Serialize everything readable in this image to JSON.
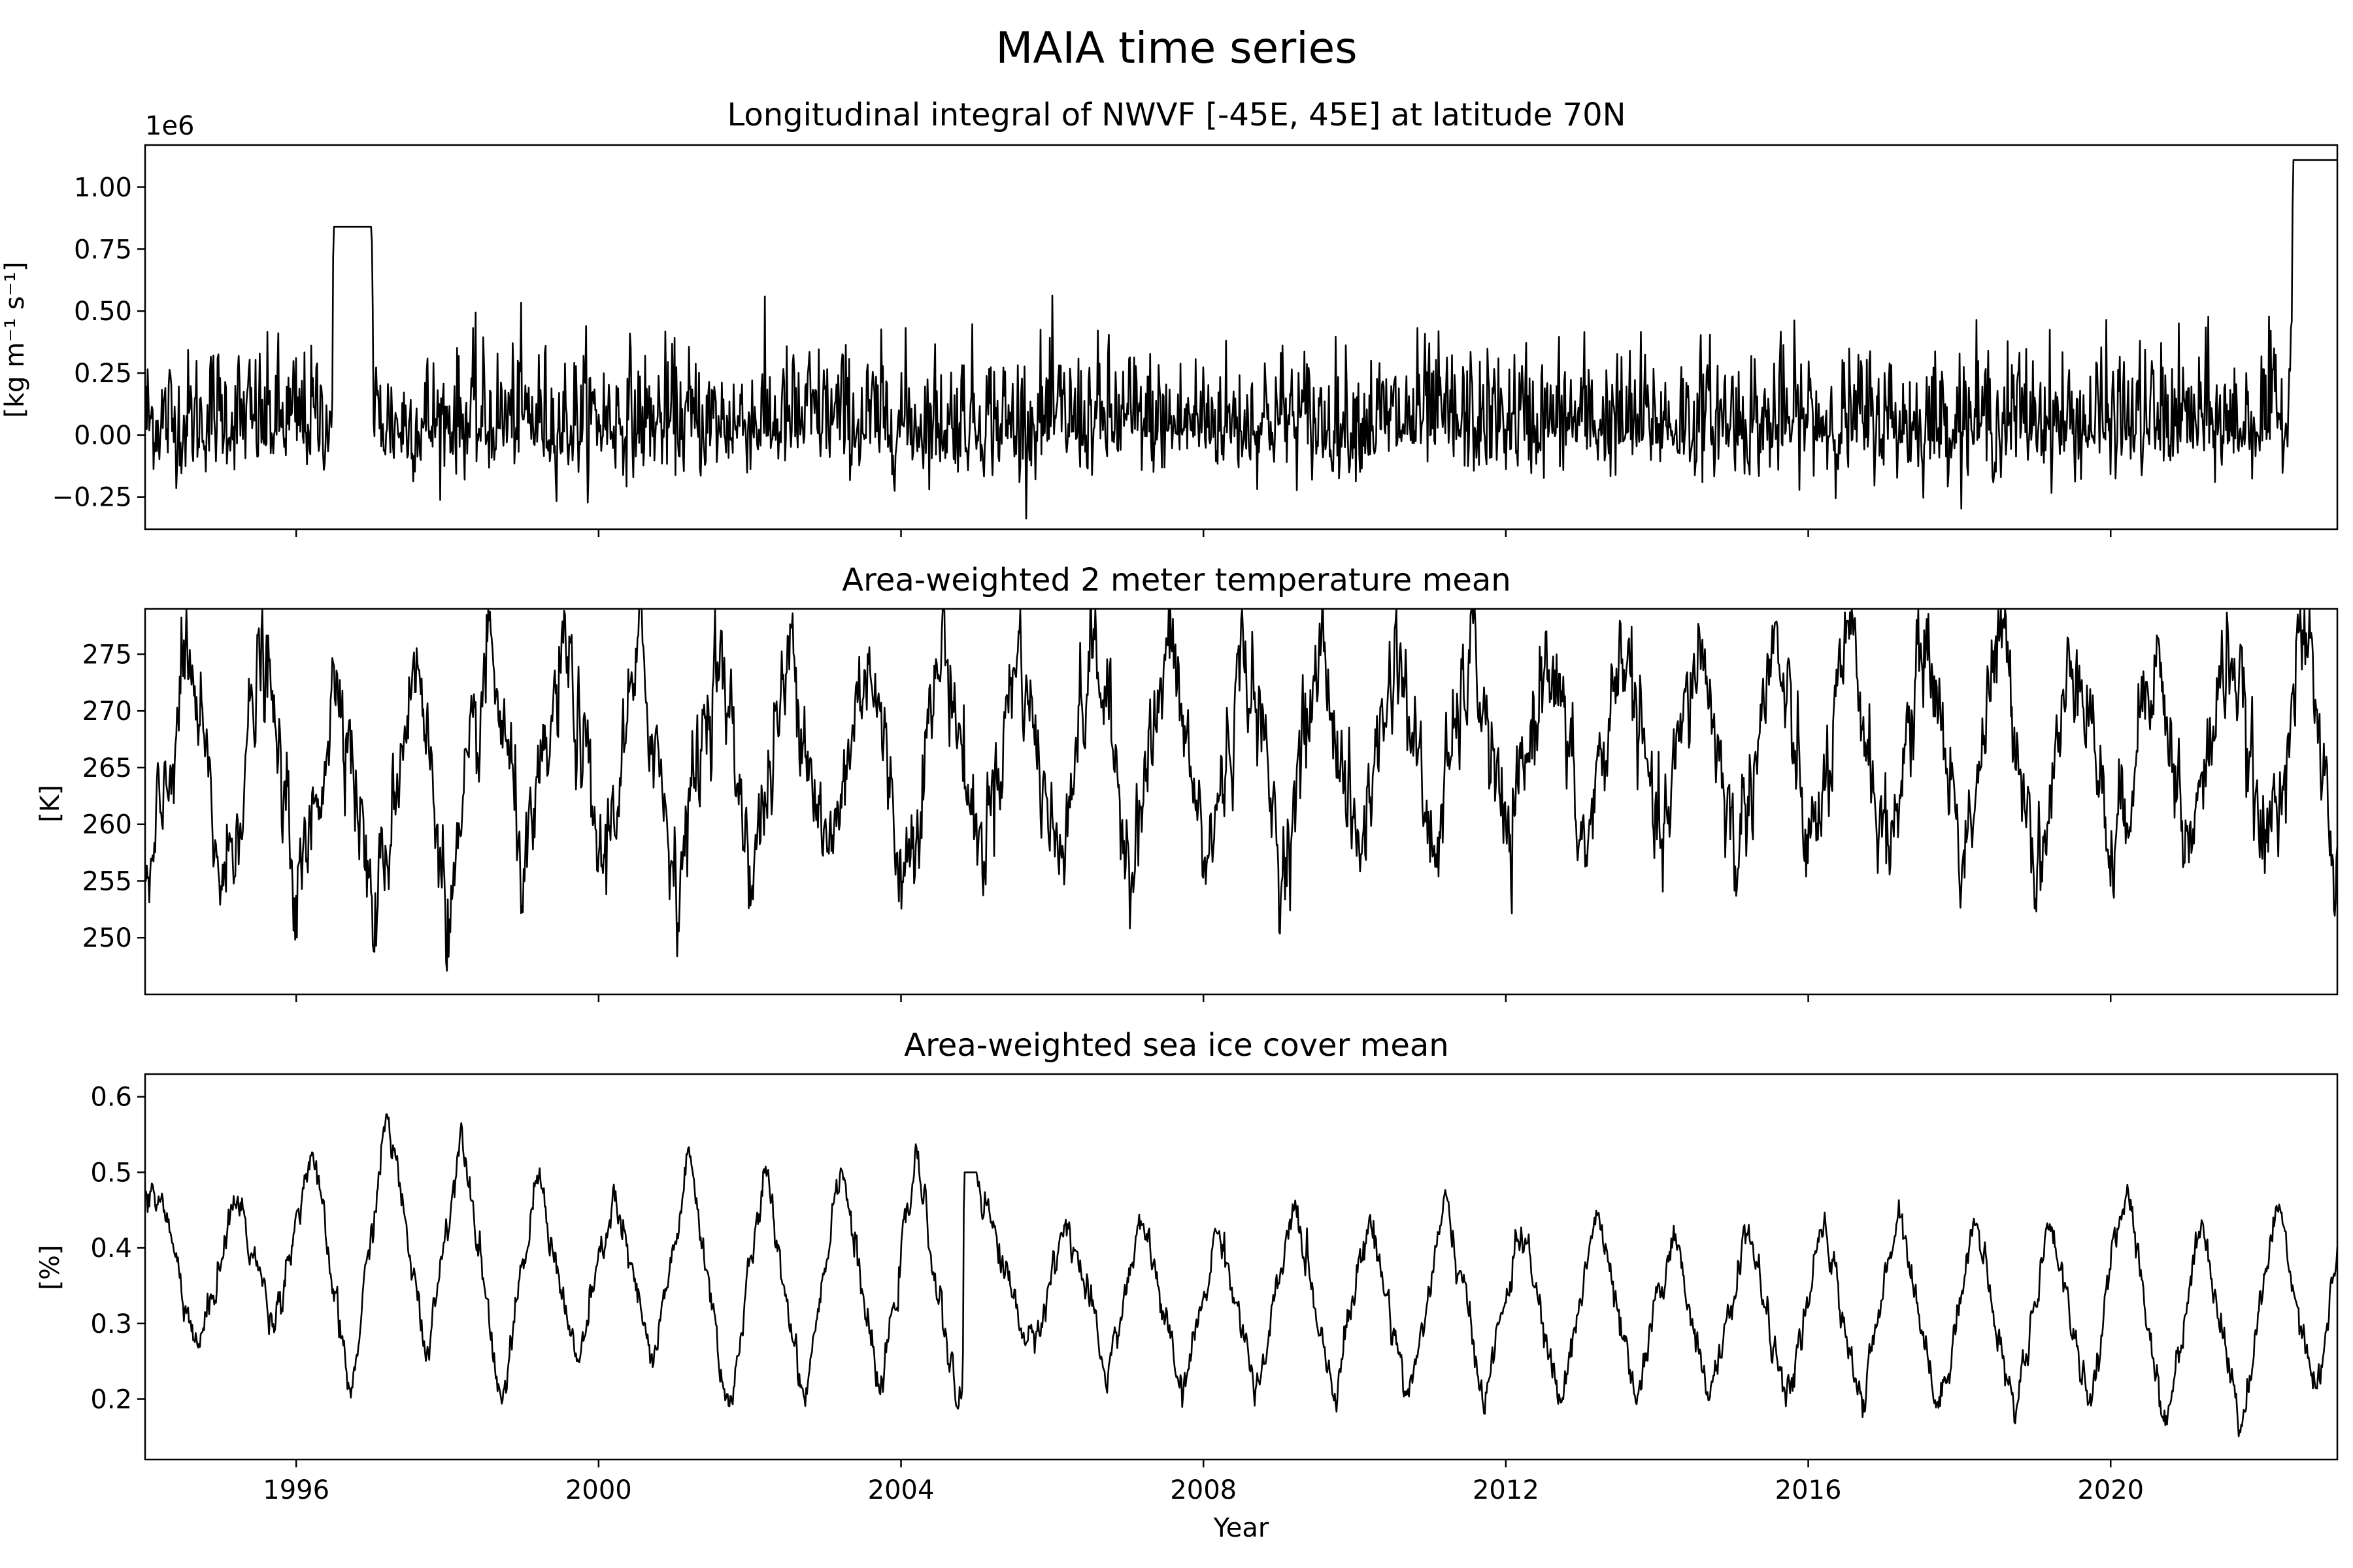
{
  "figure": {
    "suptitle": "MAIA time series",
    "xlabel": "Year"
  },
  "chart_data": [
    {
      "type": "line",
      "title": "Longitudinal integral of NWVF [-45E, 45E] at latitude 70N",
      "ylabel": "[kg m⁻¹ s⁻¹]",
      "offset_label": "1e6",
      "xlim": [
        "1994-01-01",
        "2022-12-31"
      ],
      "ylim": [
        -0.38,
        1.17
      ],
      "y_ticks": [
        -0.25,
        0.0,
        0.25,
        0.5,
        0.75,
        1.0
      ],
      "y_tick_labels": [
        "−0.25",
        "0.00",
        "0.25",
        "0.50",
        "0.75",
        "1.00"
      ],
      "x_ticks": [
        1996,
        2000,
        2004,
        2008,
        2012,
        2016,
        2020
      ],
      "x_tick_labels_shown": false,
      "series": [
        {
          "x": [
            "1994-01-01",
            "1994-07-01",
            "1995-01-01",
            "1995-07-01",
            "1996-01-01",
            "1996-06-20",
            "1996-07-01",
            "1996-12-31",
            "1997-01-10",
            "1997-07-01",
            "1998-01-01",
            "1998-07-01",
            "1999-01-01",
            "1999-07-01",
            "2000-01-01",
            "2000-07-01",
            "2001-01-01",
            "2001-07-01",
            "2002-01-01",
            "2002-07-01",
            "2003-01-01",
            "2003-07-01",
            "2004-01-01",
            "2004-07-01",
            "2005-01-01",
            "2005-07-01",
            "2006-01-01",
            "2006-07-01",
            "2007-01-01",
            "2007-07-01",
            "2008-01-01",
            "2008-07-01",
            "2009-01-01",
            "2009-07-01",
            "2010-01-01",
            "2010-07-01",
            "2011-01-01",
            "2011-07-01",
            "2012-01-01",
            "2012-07-01",
            "2013-01-01",
            "2013-07-01",
            "2014-01-01",
            "2014-07-01",
            "2015-01-01",
            "2015-07-01",
            "2016-01-01",
            "2016-07-01",
            "2017-01-01",
            "2017-07-01",
            "2018-01-01",
            "2018-07-01",
            "2019-01-01",
            "2019-07-01",
            "2020-01-01",
            "2020-07-01",
            "2021-01-01",
            "2021-07-01",
            "2022-01-01",
            "2022-05-15",
            "2022-06-01",
            "2022-12-31"
          ],
          "y": [
            0.05,
            0.02,
            0.06,
            0.03,
            0.04,
            0.05,
            0.84,
            0.84,
            0.04,
            0.02,
            0.05,
            0.03,
            0.06,
            0.02,
            0.05,
            0.03,
            0.04,
            0.02,
            0.05,
            0.03,
            0.06,
            0.02,
            0.04,
            0.03,
            0.05,
            0.02,
            0.05,
            0.03,
            0.04,
            0.02,
            0.05,
            0.03,
            0.06,
            0.02,
            0.04,
            0.03,
            0.05,
            0.02,
            0.04,
            0.03,
            0.05,
            0.02,
            0.04,
            0.03,
            0.05,
            0.02,
            0.05,
            0.03,
            0.04,
            0.02,
            0.05,
            0.03,
            0.06,
            0.02,
            0.04,
            0.03,
            0.05,
            0.02,
            0.05,
            0.06,
            1.11,
            1.11
          ]
        }
      ]
    },
    {
      "type": "line",
      "title": "Area-weighted 2 meter temperature mean",
      "ylabel": "[K]",
      "xlim": [
        "1994-01-01",
        "2022-12-31"
      ],
      "ylim": [
        245,
        279
      ],
      "y_ticks": [
        250,
        255,
        260,
        265,
        270,
        275
      ],
      "y_tick_labels": [
        "250",
        "255",
        "260",
        "265",
        "270",
        "275"
      ],
      "x_ticks": [
        1996,
        2000,
        2004,
        2008,
        2012,
        2016,
        2020
      ],
      "x_tick_labels_shown": false,
      "series": [
        {
          "x": [
            "1994-01-15",
            "1994-07-25",
            "1995-01-15",
            "1995-07-25",
            "1996-01-15",
            "1996-07-25",
            "1997-01-15",
            "1997-07-25",
            "1998-01-15",
            "1998-07-25",
            "1999-01-15",
            "1999-07-25",
            "2000-01-15",
            "2000-07-25",
            "2001-01-15",
            "2001-07-25",
            "2002-01-15",
            "2002-07-25",
            "2003-01-15",
            "2003-07-25",
            "2004-01-15",
            "2004-07-25",
            "2005-01-15",
            "2005-07-25",
            "2006-01-15",
            "2006-07-25",
            "2007-01-15",
            "2007-07-25",
            "2008-01-15",
            "2008-07-25",
            "2009-01-15",
            "2009-07-25",
            "2010-01-15",
            "2010-07-25",
            "2011-01-15",
            "2011-07-25",
            "2012-01-15",
            "2012-07-25",
            "2013-01-15",
            "2013-07-25",
            "2014-01-15",
            "2014-07-25",
            "2015-01-15",
            "2015-07-25",
            "2016-01-15",
            "2016-07-25",
            "2017-01-15",
            "2017-07-25",
            "2018-01-15",
            "2018-07-25",
            "2019-01-15",
            "2019-07-25",
            "2020-01-15",
            "2020-07-25",
            "2021-01-15",
            "2021-07-25",
            "2022-01-15",
            "2022-07-25",
            "2022-12-31"
          ],
          "y": [
            253,
            275,
            254,
            275,
            253,
            274.5,
            251,
            275,
            252,
            275.5,
            255,
            275.5,
            256,
            275,
            255,
            275.5,
            256,
            276,
            256,
            276,
            255,
            276.5,
            257,
            276,
            257,
            276,
            257,
            276,
            256,
            276,
            256,
            276,
            257,
            276,
            257,
            276,
            257,
            276.5,
            257,
            276.5,
            257,
            276.5,
            257,
            276,
            257,
            276,
            257,
            277,
            257,
            277,
            256,
            277,
            256,
            276.5,
            257,
            276.5,
            257,
            277,
            255
          ]
        }
      ]
    },
    {
      "type": "line",
      "title": "Area-weighted sea ice cover mean",
      "ylabel": "[%]",
      "xlim": [
        "1994-01-01",
        "2022-12-31"
      ],
      "ylim": [
        0.12,
        0.63
      ],
      "y_ticks": [
        0.2,
        0.3,
        0.4,
        0.5,
        0.6
      ],
      "y_tick_labels": [
        "0.2",
        "0.3",
        "0.4",
        "0.5",
        "0.6"
      ],
      "x_ticks": [
        1996,
        2000,
        2004,
        2008,
        2012,
        2016,
        2020
      ],
      "x_tick_labels": [
        "1996",
        "2000",
        "2004",
        "2008",
        "2012",
        "2016",
        "2020"
      ],
      "series": [
        {
          "x": [
            "1994-01-01",
            "1994-03-15",
            "1994-09-15",
            "1995-03-15",
            "1995-09-15",
            "1996-03-15",
            "1996-09-20",
            "1997-03-15",
            "1997-09-20",
            "1998-03-15",
            "1998-09-20",
            "1999-03-15",
            "1999-09-20",
            "2000-03-15",
            "2000-09-20",
            "2001-03-15",
            "2001-09-20",
            "2002-03-15",
            "2002-09-20",
            "2003-03-15",
            "2003-09-20",
            "2004-03-15",
            "2004-09-20",
            "2004-10-25",
            "2004-11-01",
            "2005-01-01",
            "2005-03-15",
            "2005-09-20",
            "2006-03-15",
            "2006-09-20",
            "2007-03-15",
            "2007-09-20",
            "2008-03-15",
            "2008-09-20",
            "2009-03-15",
            "2009-09-20",
            "2010-03-15",
            "2010-09-20",
            "2011-03-15",
            "2011-09-20",
            "2012-03-15",
            "2012-09-20",
            "2013-03-15",
            "2013-09-20",
            "2014-03-15",
            "2014-09-20",
            "2015-03-15",
            "2015-09-20",
            "2016-03-15",
            "2016-09-20",
            "2017-03-15",
            "2017-09-20",
            "2018-03-15",
            "2018-09-20",
            "2019-03-15",
            "2019-09-20",
            "2020-03-15",
            "2020-09-20",
            "2021-03-15",
            "2021-09-20",
            "2022-03-15",
            "2022-09-20",
            "2022-12-31"
          ],
          "y": [
            0.46,
            0.47,
            0.26,
            0.47,
            0.3,
            0.53,
            0.2,
            0.58,
            0.26,
            0.56,
            0.19,
            0.5,
            0.24,
            0.47,
            0.24,
            0.52,
            0.18,
            0.5,
            0.2,
            0.52,
            0.2,
            0.52,
            0.2,
            0.2,
            0.5,
            0.5,
            0.43,
            0.26,
            0.44,
            0.23,
            0.44,
            0.2,
            0.43,
            0.2,
            0.46,
            0.21,
            0.44,
            0.2,
            0.46,
            0.2,
            0.43,
            0.19,
            0.45,
            0.19,
            0.42,
            0.2,
            0.43,
            0.19,
            0.43,
            0.19,
            0.46,
            0.18,
            0.44,
            0.18,
            0.44,
            0.19,
            0.49,
            0.16,
            0.44,
            0.16,
            0.46,
            0.21,
            0.39
          ]
        }
      ]
    }
  ]
}
